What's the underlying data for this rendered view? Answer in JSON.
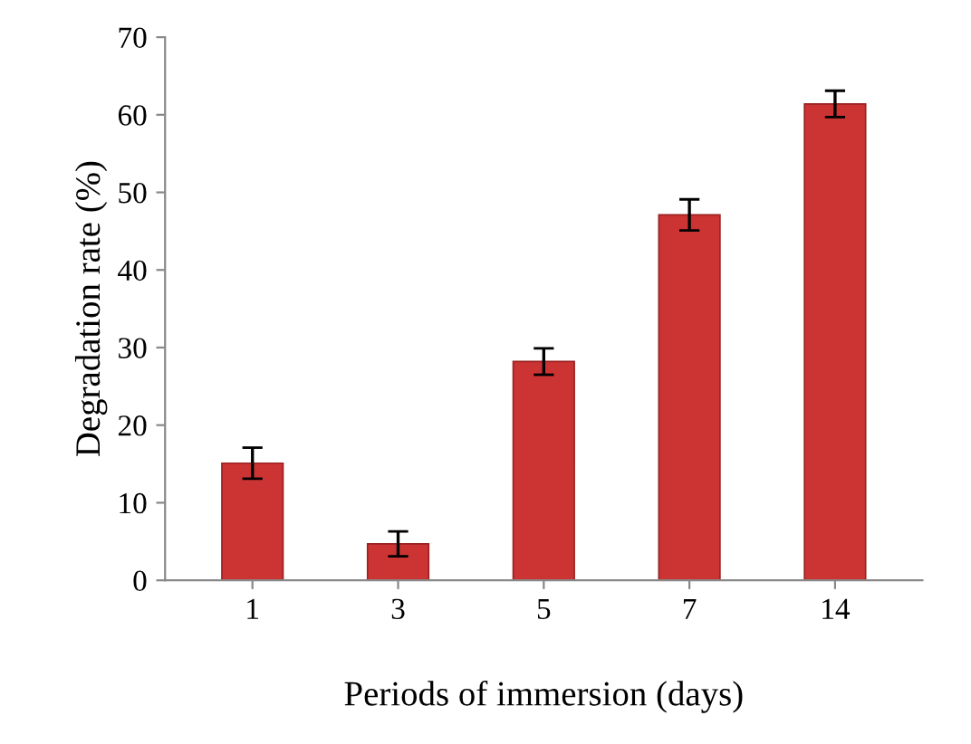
{
  "chart_data": {
    "type": "bar",
    "xlabel": "Periods of immersion (days)",
    "ylabel": "Degradation rate (%)",
    "categories": [
      "1",
      "3",
      "5",
      "7",
      "14"
    ],
    "values": [
      15.1,
      4.7,
      28.2,
      47.1,
      61.4
    ],
    "errors": [
      2,
      1.6,
      1.7,
      2,
      1.7
    ],
    "color": "#cc3333",
    "ylim": [
      0,
      70
    ],
    "yticks": [
      0,
      10,
      20,
      30,
      40,
      50,
      60,
      70
    ],
    "grid": false,
    "legend": false
  }
}
